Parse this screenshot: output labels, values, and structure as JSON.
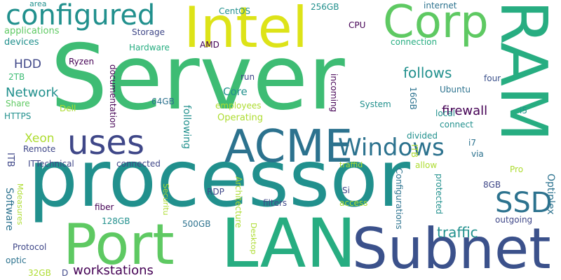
{
  "cloud": {
    "words": {
      "server": "Server",
      "processor": "processor",
      "intel": "Intel",
      "ram": "RAM",
      "lan": "LAN",
      "subnet": "Subnet",
      "port": "Port",
      "acme": "ACME",
      "corp": "Corp",
      "configured": "configured",
      "uses": "uses",
      "windows": "Windows",
      "ssd": "SSD",
      "workstations": "workstations",
      "traffic": "traffic",
      "follows": "follows",
      "firewall": "firewall",
      "network": "Network",
      "hdd": "HDD",
      "xeon": "Xeon",
      "core": "Core",
      "applications": "applications",
      "devices": "devices",
      "tb2": "2TB",
      "share": "Share",
      "https": "HTTPS",
      "dell": "Dell",
      "remote": "Remote",
      "ittechnical": "ITTechnical",
      "connected": "connected",
      "ryzen": "Ryzen",
      "documentation": "documentation",
      "storage": "Storage",
      "hardware": "Hardware",
      "centos": "CentOS",
      "amd": "AMD",
      "area": "area",
      "gb256": "256GB",
      "internet": "internet",
      "cpu": "CPU",
      "connection": "connection",
      "four": "four",
      "run": "run",
      "gb64": "64GB",
      "employees": "employees",
      "operating": "Operating",
      "system": "System",
      "ubuntu": "Ubuntu",
      "i5": "i5",
      "connect": "connect",
      "divided": "divided",
      "i7": "i7",
      "via": "via",
      "traffid": "traffid",
      "allow": "allow",
      "pro": "Pro",
      "gb8": "8GB",
      "si": "Si",
      "local": "local",
      "access": "access",
      "filters": "filters",
      "rdp": "RDP",
      "fiber": "fiber",
      "gb128": "128GB",
      "gb500": "500GB",
      "outgoing": "outgoing",
      "protocol": "Protocol",
      "optic": "optic",
      "gb32": "32GB",
      "d": "D",
      "itb1": "ITB",
      "software": "Software",
      "mdeasures": "Mdeasures",
      "following": "following",
      "securitu": "Securitu",
      "architecture": "Architecture",
      "desktop": "Desktop",
      "incoming": "incoming",
      "gb16": "16GB",
      "configurations": "Configurations",
      "itb2": "ITB",
      "protected": "protected",
      "optiplex": "Optiplex"
    }
  },
  "palette": {
    "indigo": "#3f4788",
    "dark_blue": "#3b518b",
    "blue_teal": "#2c728e",
    "teal": "#21908d",
    "green_teal": "#27ad81",
    "green": "#3ebc74",
    "light_green": "#5ec962",
    "yellow_green": "#addc30",
    "yellow": "#dde318",
    "dark_purple": "#440154"
  }
}
